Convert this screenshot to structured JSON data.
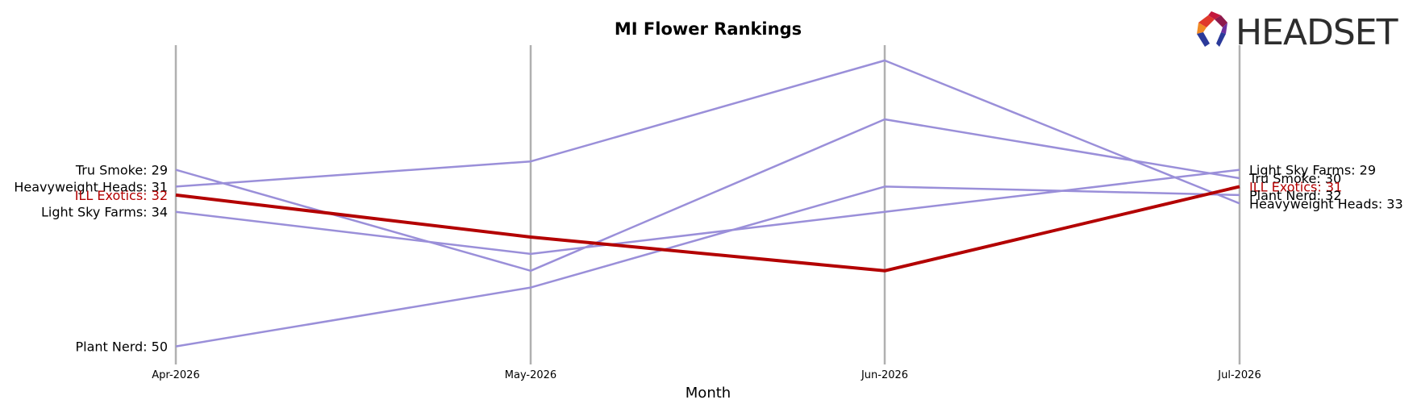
{
  "chart_data": {
    "type": "line",
    "title": "MI Flower Rankings",
    "xlabel": "Month",
    "ylabel": "",
    "categories": [
      "Apr-2026",
      "May-2026",
      "Jun-2026",
      "Jul-2026"
    ],
    "y_inverted": true,
    "ylim": [
      15,
      53
    ],
    "grid": "vertical lines at each month",
    "legend": "none; series labels at left and right ends",
    "series": [
      {
        "name": "ILL Exotics",
        "values": [
          32,
          37,
          41,
          31
        ],
        "color": "#b30000",
        "highlight": true
      },
      {
        "name": "Tru Smoke",
        "values": [
          29,
          41,
          23,
          30
        ],
        "color": "#9a8fd9"
      },
      {
        "name": "Heavyweight Heads",
        "values": [
          31,
          28,
          16,
          33
        ],
        "color": "#9a8fd9"
      },
      {
        "name": "Light Sky Farms",
        "values": [
          34,
          39,
          34,
          29
        ],
        "color": "#9a8fd9"
      },
      {
        "name": "Plant Nerd",
        "values": [
          50,
          43,
          31,
          32
        ],
        "color": "#9a8fd9"
      }
    ],
    "left_labels": [
      {
        "text": "Tru Smoke: 29",
        "series": 1
      },
      {
        "text": "Heavyweight Heads: 31",
        "series": 2
      },
      {
        "text": "ILL Exotics: 32",
        "series": 0
      },
      {
        "text": "Light Sky Farms: 34",
        "series": 3
      },
      {
        "text": "Plant Nerd: 50",
        "series": 4
      }
    ],
    "right_labels": [
      {
        "text": "Light Sky Farms: 29",
        "series": 3
      },
      {
        "text": "Tru Smoke: 30",
        "series": 1
      },
      {
        "text": "ILL Exotics: 31",
        "series": 0
      },
      {
        "text": "Plant Nerd: 32",
        "series": 4
      },
      {
        "text": "Heavyweight Heads: 33",
        "series": 2
      }
    ]
  },
  "logo": {
    "text": "HEADSET",
    "icon": "headset-logo-icon"
  },
  "colors": {
    "highlight": "#b30000",
    "other": "#9a8fd9",
    "axis": "#b0b0b0"
  }
}
